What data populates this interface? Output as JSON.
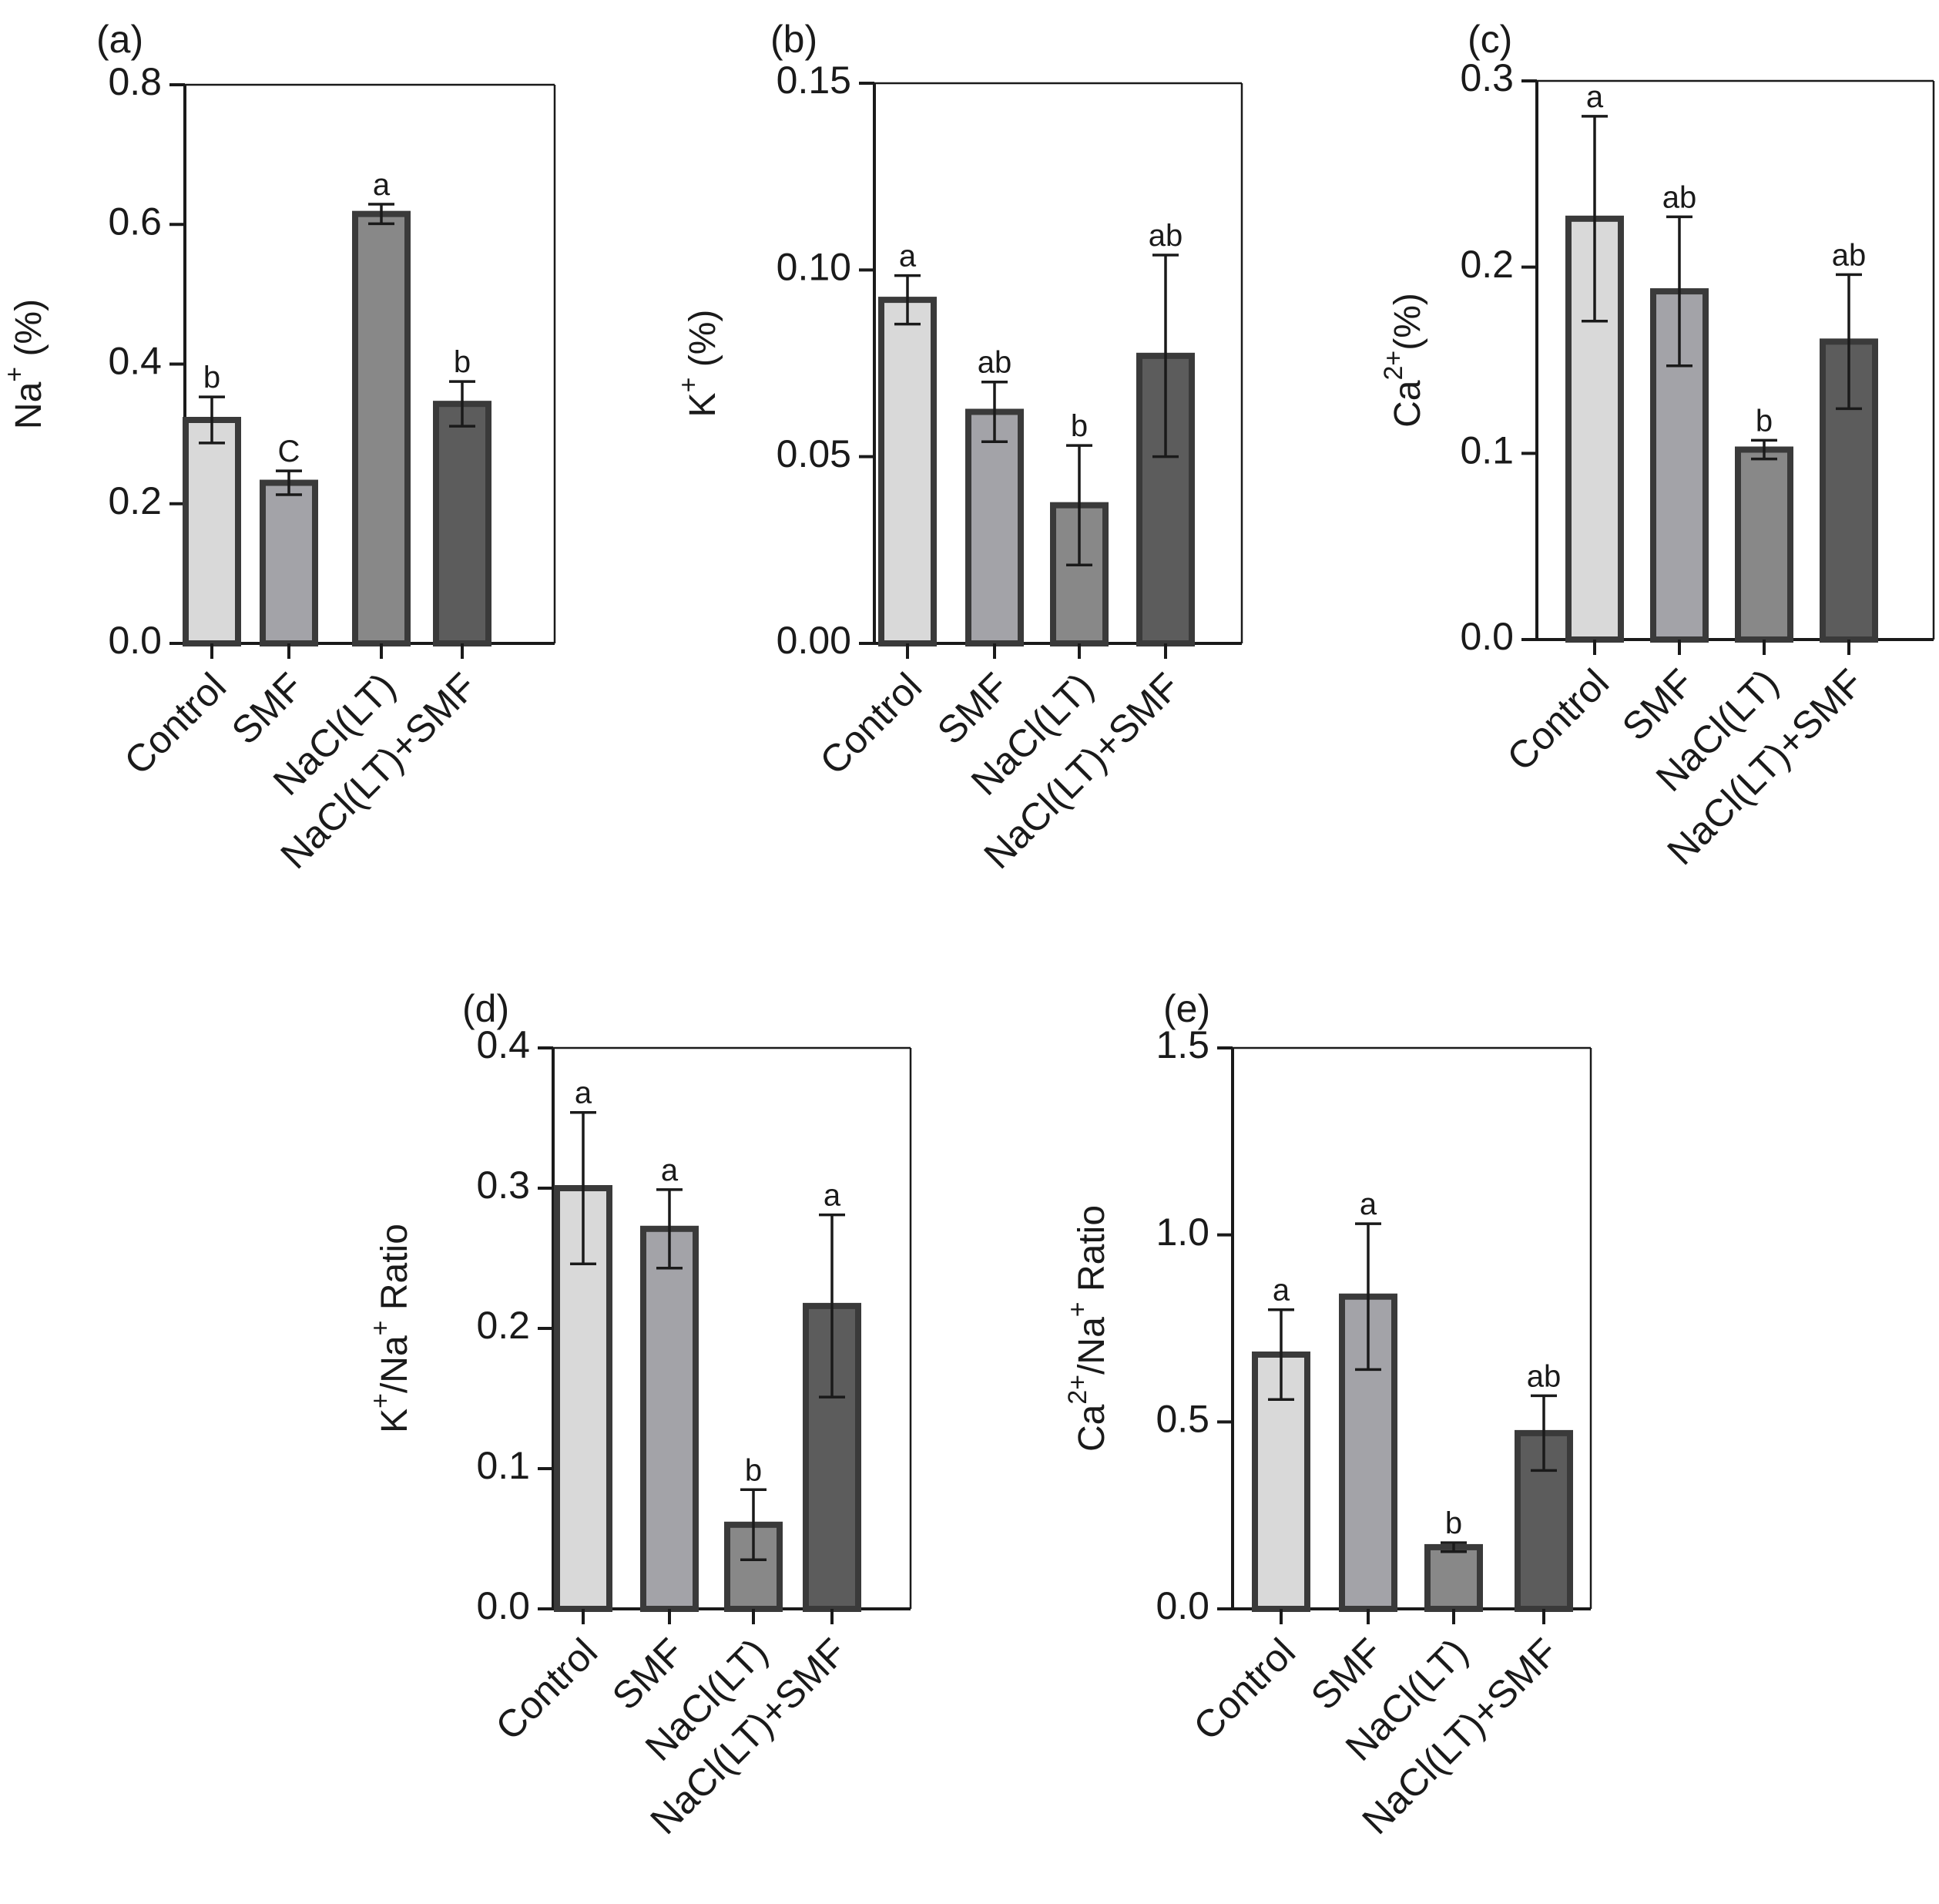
{
  "chart_data": [
    {
      "panel": "(a)",
      "type": "bar",
      "ylabel_base": "Na",
      "ylabel_sup": "+",
      "ylabel_rest": " (%)",
      "categories": [
        "Control",
        "SMF",
        "NaCl(LT)",
        "NaCl(LT)+SMF"
      ],
      "values": [
        0.32,
        0.23,
        0.615,
        0.343
      ],
      "errors": [
        0.033,
        0.017,
        0.014,
        0.032
      ],
      "sig_labels": [
        "b",
        "C",
        "a",
        "b"
      ],
      "ylim": [
        0,
        0.8
      ],
      "yticks": [
        "0.0",
        "0.2",
        "0.4",
        "0.6",
        "0.8"
      ],
      "colors": [
        "#d9d9d9",
        "#a3a3a8",
        "#888888",
        "#5c5c5c"
      ]
    },
    {
      "panel": "(b)",
      "type": "bar",
      "ylabel_base": "K",
      "ylabel_sup": "+",
      "ylabel_rest": " (%)",
      "categories": [
        "Control",
        "SMF",
        "NaCl(LT)",
        "NaCl(LT)+SMF"
      ],
      "values": [
        0.092,
        0.062,
        0.037,
        0.077
      ],
      "errors": [
        0.0065,
        0.008,
        0.016,
        0.027
      ],
      "sig_labels": [
        "a",
        "ab",
        "b",
        "ab"
      ],
      "ylim": [
        0,
        0.15
      ],
      "yticks": [
        "0.00",
        "0.05",
        "0.10",
        "0.15"
      ],
      "colors": [
        "#d9d9d9",
        "#a3a3a8",
        "#888888",
        "#5c5c5c"
      ]
    },
    {
      "panel": "(c)",
      "type": "bar",
      "ylabel_base": "Ca",
      "ylabel_sup": "2+",
      "ylabel_rest": "(%)",
      "categories": [
        "Control",
        "SMF",
        "NaCl(LT)",
        "NaCl(LT)+SMF"
      ],
      "values": [
        0.226,
        0.187,
        0.102,
        0.16
      ],
      "errors": [
        0.055,
        0.04,
        0.005,
        0.036
      ],
      "sig_labels": [
        "a",
        "ab",
        "b",
        "ab"
      ],
      "ylim": [
        0,
        0.3
      ],
      "yticks": [
        "0.0",
        "0.1",
        "0.2",
        "0.3"
      ],
      "colors": [
        "#d9d9d9",
        "#a3a3a8",
        "#888888",
        "#5c5c5c"
      ]
    },
    {
      "panel": "(d)",
      "type": "bar",
      "ylabel_base": "K",
      "ylabel_sup": "+",
      "ylabel_mid": "/Na",
      "ylabel_sup2": "+",
      "ylabel_rest": " Ratio",
      "categories": [
        "Control",
        "SMF",
        "NaCl(LT)",
        "NaCl(LT)+SMF"
      ],
      "values": [
        0.3,
        0.271,
        0.06,
        0.216
      ],
      "errors": [
        0.054,
        0.028,
        0.025,
        0.065
      ],
      "sig_labels": [
        "a",
        "a",
        "b",
        "a"
      ],
      "ylim": [
        0,
        0.4
      ],
      "yticks": [
        "0.0",
        "0.1",
        "0.2",
        "0.3",
        "0.4"
      ],
      "colors": [
        "#d9d9d9",
        "#a3a3a8",
        "#888888",
        "#5c5c5c"
      ]
    },
    {
      "panel": "(e)",
      "type": "bar",
      "ylabel_base": "Ca",
      "ylabel_sup": "2+",
      "ylabel_mid": "/Na",
      "ylabel_sup2": "+",
      "ylabel_rest": " Ratio",
      "categories": [
        "Control",
        "SMF",
        "NaCl(LT)",
        "NaCl(LT)+SMF"
      ],
      "values": [
        0.68,
        0.835,
        0.165,
        0.47
      ],
      "errors": [
        0.12,
        0.195,
        0.012,
        0.1
      ],
      "sig_labels": [
        "a",
        "a",
        "b",
        "ab"
      ],
      "ylim": [
        0,
        1.5
      ],
      "yticks": [
        "0.0",
        "0.5",
        "1.0",
        "1.5"
      ],
      "colors": [
        "#d9d9d9",
        "#a3a3a8",
        "#888888",
        "#5c5c5c"
      ]
    }
  ]
}
